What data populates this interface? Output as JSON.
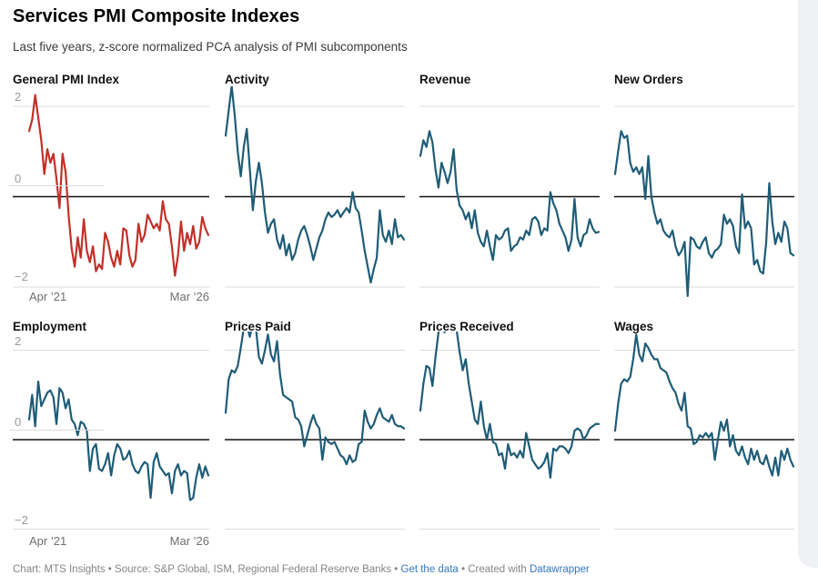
{
  "header": {
    "title": "Services PMI Composite Indexes",
    "subtitle": "Last five years, z-score normalized PCA analysis of PMI subcomponents"
  },
  "footer": {
    "prefix": "Chart: MTS Insights • Source: S&P Global, ISM, Regional Federal Reserve Banks • ",
    "get_data_label": "Get the data",
    "middle": " • Created with ",
    "datawrapper_label": "Datawrapper"
  },
  "axis": {
    "y_tick_labels": [
      "2",
      "0",
      "−2"
    ],
    "x_first": "Apr ’21",
    "x_last": "Mar ’26"
  },
  "chart_data": {
    "type": "line",
    "layout": "small multiples, 2 rows x 4 columns, shared scales",
    "title": "Services PMI Composite Indexes",
    "subtitle": "Last five years, z-score normalized PCA analysis of PMI subcomponents",
    "x_range": [
      "Apr ’21",
      "Mar ’26"
    ],
    "months": 60,
    "ylim": [
      -2,
      2
    ],
    "y_ticks": [
      2,
      0,
      -2
    ],
    "grid": "light gray lines at +2 and -2, solid black baseline at 0; y labels only on first column, x labels only on first column of each row",
    "colors": {
      "highlight_line": "#c23028",
      "base_line": "#1e5c77",
      "gridline": "#dcdcdc",
      "zero_line": "#111111",
      "tick_label": "#9b9b9b",
      "x_label": "#6f6f6f",
      "footer_link": "#3377c2"
    },
    "series": [
      {
        "name": "General PMI Index",
        "color": "#c23028",
        "values": [
          1.45,
          1.7,
          2.25,
          1.75,
          1.25,
          0.5,
          1.05,
          0.75,
          0.95,
          0.4,
          -0.25,
          0.95,
          0.55,
          -0.4,
          -1.15,
          -1.55,
          -0.9,
          -1.35,
          -0.5,
          -1.2,
          -1.45,
          -1.1,
          -1.65,
          -1.5,
          -1.6,
          -0.8,
          -1.0,
          -1.35,
          -1.55,
          -1.2,
          -1.5,
          -0.7,
          -0.75,
          -1.3,
          -1.55,
          -1.4,
          -0.6,
          -1.0,
          -0.85,
          -0.4,
          -0.55,
          -0.7,
          -0.6,
          -0.75,
          -0.1,
          -0.5,
          -0.6,
          -1.1,
          -1.75,
          -1.3,
          -0.55,
          -1.2,
          -0.8,
          -1.05,
          -0.65,
          -1.15,
          -1.0,
          -0.45,
          -0.7,
          -0.85
        ]
      },
      {
        "name": "Activity",
        "color": "#1e5c77",
        "values": [
          1.35,
          1.9,
          2.45,
          1.8,
          1.0,
          0.45,
          1.1,
          1.5,
          0.6,
          -0.3,
          0.35,
          0.75,
          0.3,
          -0.35,
          -0.8,
          -0.6,
          -0.5,
          -0.95,
          -1.15,
          -0.85,
          -1.3,
          -1.05,
          -1.4,
          -1.25,
          -0.95,
          -0.75,
          -0.65,
          -0.85,
          -1.1,
          -1.4,
          -1.15,
          -0.9,
          -0.75,
          -0.5,
          -0.35,
          -0.45,
          -0.4,
          -0.3,
          -0.45,
          -0.35,
          -0.25,
          -0.35,
          0.1,
          -0.25,
          -0.35,
          -0.75,
          -1.2,
          -1.55,
          -1.9,
          -1.6,
          -1.35,
          -0.3,
          -0.85,
          -1.0,
          -0.75,
          -1.05,
          -0.5,
          -0.9,
          -0.85,
          -0.95
        ]
      },
      {
        "name": "Revenue",
        "color": "#1e5c77",
        "values": [
          0.9,
          1.25,
          1.1,
          1.45,
          1.2,
          0.6,
          0.2,
          0.75,
          0.55,
          0.3,
          0.55,
          1.05,
          0.15,
          -0.2,
          -0.3,
          -0.5,
          -0.35,
          -0.7,
          -0.3,
          -0.8,
          -1.0,
          -1.1,
          -0.75,
          -1.1,
          -1.4,
          -0.85,
          -0.95,
          -0.9,
          -0.75,
          -0.7,
          -1.2,
          -1.1,
          -1.05,
          -0.9,
          -0.95,
          -0.75,
          -0.85,
          -0.5,
          -0.45,
          -0.55,
          -0.85,
          -0.7,
          -0.75,
          0.1,
          -0.15,
          -0.3,
          -0.6,
          -0.75,
          -0.9,
          -1.2,
          -0.95,
          -0.05,
          -0.9,
          -1.1,
          -0.85,
          -0.8,
          -0.5,
          -0.7,
          -0.8,
          -0.78
        ]
      },
      {
        "name": "New Orders",
        "color": "#1e5c77",
        "values": [
          0.5,
          1.0,
          1.45,
          1.3,
          1.35,
          0.75,
          0.55,
          0.65,
          0.5,
          0.65,
          -0.05,
          0.9,
          0.0,
          -0.35,
          -0.6,
          -0.5,
          -0.75,
          -0.85,
          -0.9,
          -0.75,
          -1.1,
          -1.3,
          -1.2,
          -1.0,
          -2.2,
          -0.9,
          -0.95,
          -1.1,
          -1.15,
          -1.0,
          -0.9,
          -1.25,
          -1.35,
          -1.2,
          -1.15,
          -1.05,
          -0.4,
          -0.6,
          -0.5,
          -0.65,
          -1.1,
          -1.25,
          0.05,
          -0.7,
          -0.55,
          -0.7,
          -1.5,
          -1.4,
          -1.65,
          -1.7,
          -1.0,
          0.3,
          -0.55,
          -1.05,
          -0.8,
          -1.0,
          -0.55,
          -0.7,
          -1.25,
          -1.3
        ]
      },
      {
        "name": "Employment",
        "color": "#1e5c77",
        "values": [
          0.45,
          1.0,
          0.3,
          1.3,
          0.75,
          0.9,
          1.05,
          1.1,
          0.95,
          0.35,
          1.15,
          1.05,
          0.7,
          0.9,
          0.45,
          0.35,
          0.1,
          0.4,
          0.35,
          0.2,
          -0.7,
          -0.2,
          -0.1,
          -0.65,
          -0.7,
          -0.55,
          -0.3,
          -0.8,
          -0.35,
          -0.1,
          -0.2,
          -0.45,
          -0.4,
          -0.25,
          -0.55,
          -0.7,
          -0.75,
          -0.6,
          -0.5,
          -0.55,
          -1.3,
          -0.5,
          -0.3,
          -0.6,
          -0.7,
          -0.8,
          -0.75,
          -1.2,
          -0.7,
          -0.55,
          -0.8,
          -0.7,
          -0.75,
          -1.35,
          -1.3,
          -0.85,
          -0.55,
          -0.85,
          -0.6,
          -0.8
        ]
      },
      {
        "name": "Prices Paid",
        "color": "#1e5c77",
        "values": [
          0.6,
          1.35,
          1.55,
          1.5,
          1.65,
          2.05,
          2.5,
          2.55,
          2.3,
          2.6,
          2.5,
          1.85,
          1.7,
          2.0,
          2.35,
          1.9,
          1.75,
          2.2,
          1.45,
          1.0,
          0.95,
          0.9,
          0.85,
          0.5,
          0.45,
          0.3,
          -0.15,
          0.1,
          0.35,
          0.55,
          0.35,
          0.25,
          -0.45,
          0.05,
          -0.05,
          -0.1,
          -0.05,
          -0.2,
          -0.35,
          -0.4,
          -0.55,
          -0.35,
          -0.5,
          -0.45,
          -0.1,
          -0.05,
          0.65,
          0.4,
          0.25,
          0.35,
          0.55,
          0.7,
          0.5,
          0.45,
          0.4,
          0.55,
          0.35,
          0.3,
          0.3,
          0.25
        ]
      },
      {
        "name": "Prices Received",
        "color": "#1e5c77",
        "values": [
          0.65,
          1.25,
          1.65,
          1.6,
          1.2,
          1.85,
          2.4,
          2.6,
          2.4,
          2.65,
          2.6,
          2.55,
          2.45,
          1.95,
          1.55,
          1.8,
          1.25,
          0.85,
          0.45,
          0.35,
          0.85,
          0.3,
          0.0,
          0.35,
          -0.05,
          -0.1,
          -0.35,
          -0.3,
          -0.65,
          -0.1,
          -0.35,
          -0.3,
          -0.4,
          -0.25,
          -0.4,
          0.15,
          -0.15,
          -0.45,
          -0.55,
          -0.65,
          -0.6,
          -0.5,
          -0.3,
          -0.85,
          -0.2,
          -0.25,
          -0.15,
          -0.15,
          -0.2,
          -0.3,
          -0.15,
          0.2,
          0.25,
          0.2,
          0.0,
          0.1,
          0.25,
          0.3,
          0.35,
          0.35
        ]
      },
      {
        "name": "Wages",
        "color": "#1e5c77",
        "values": [
          0.2,
          0.8,
          1.25,
          1.35,
          1.3,
          1.4,
          1.8,
          2.35,
          1.9,
          1.75,
          2.15,
          2.05,
          1.9,
          1.8,
          1.8,
          1.6,
          1.55,
          1.5,
          1.3,
          1.15,
          1.05,
          0.8,
          0.65,
          1.05,
          0.3,
          0.25,
          -0.1,
          -0.05,
          0.1,
          0.05,
          0.15,
          0.05,
          0.15,
          -0.45,
          0.0,
          0.4,
          0.2,
          0.45,
          -0.15,
          0.1,
          -0.25,
          -0.35,
          -0.15,
          -0.4,
          -0.55,
          -0.2,
          -0.45,
          -0.25,
          -0.5,
          -0.55,
          -0.35,
          -0.6,
          -0.8,
          -0.4,
          -0.8,
          -0.25,
          -0.45,
          -0.2,
          -0.45,
          -0.6
        ]
      }
    ]
  }
}
